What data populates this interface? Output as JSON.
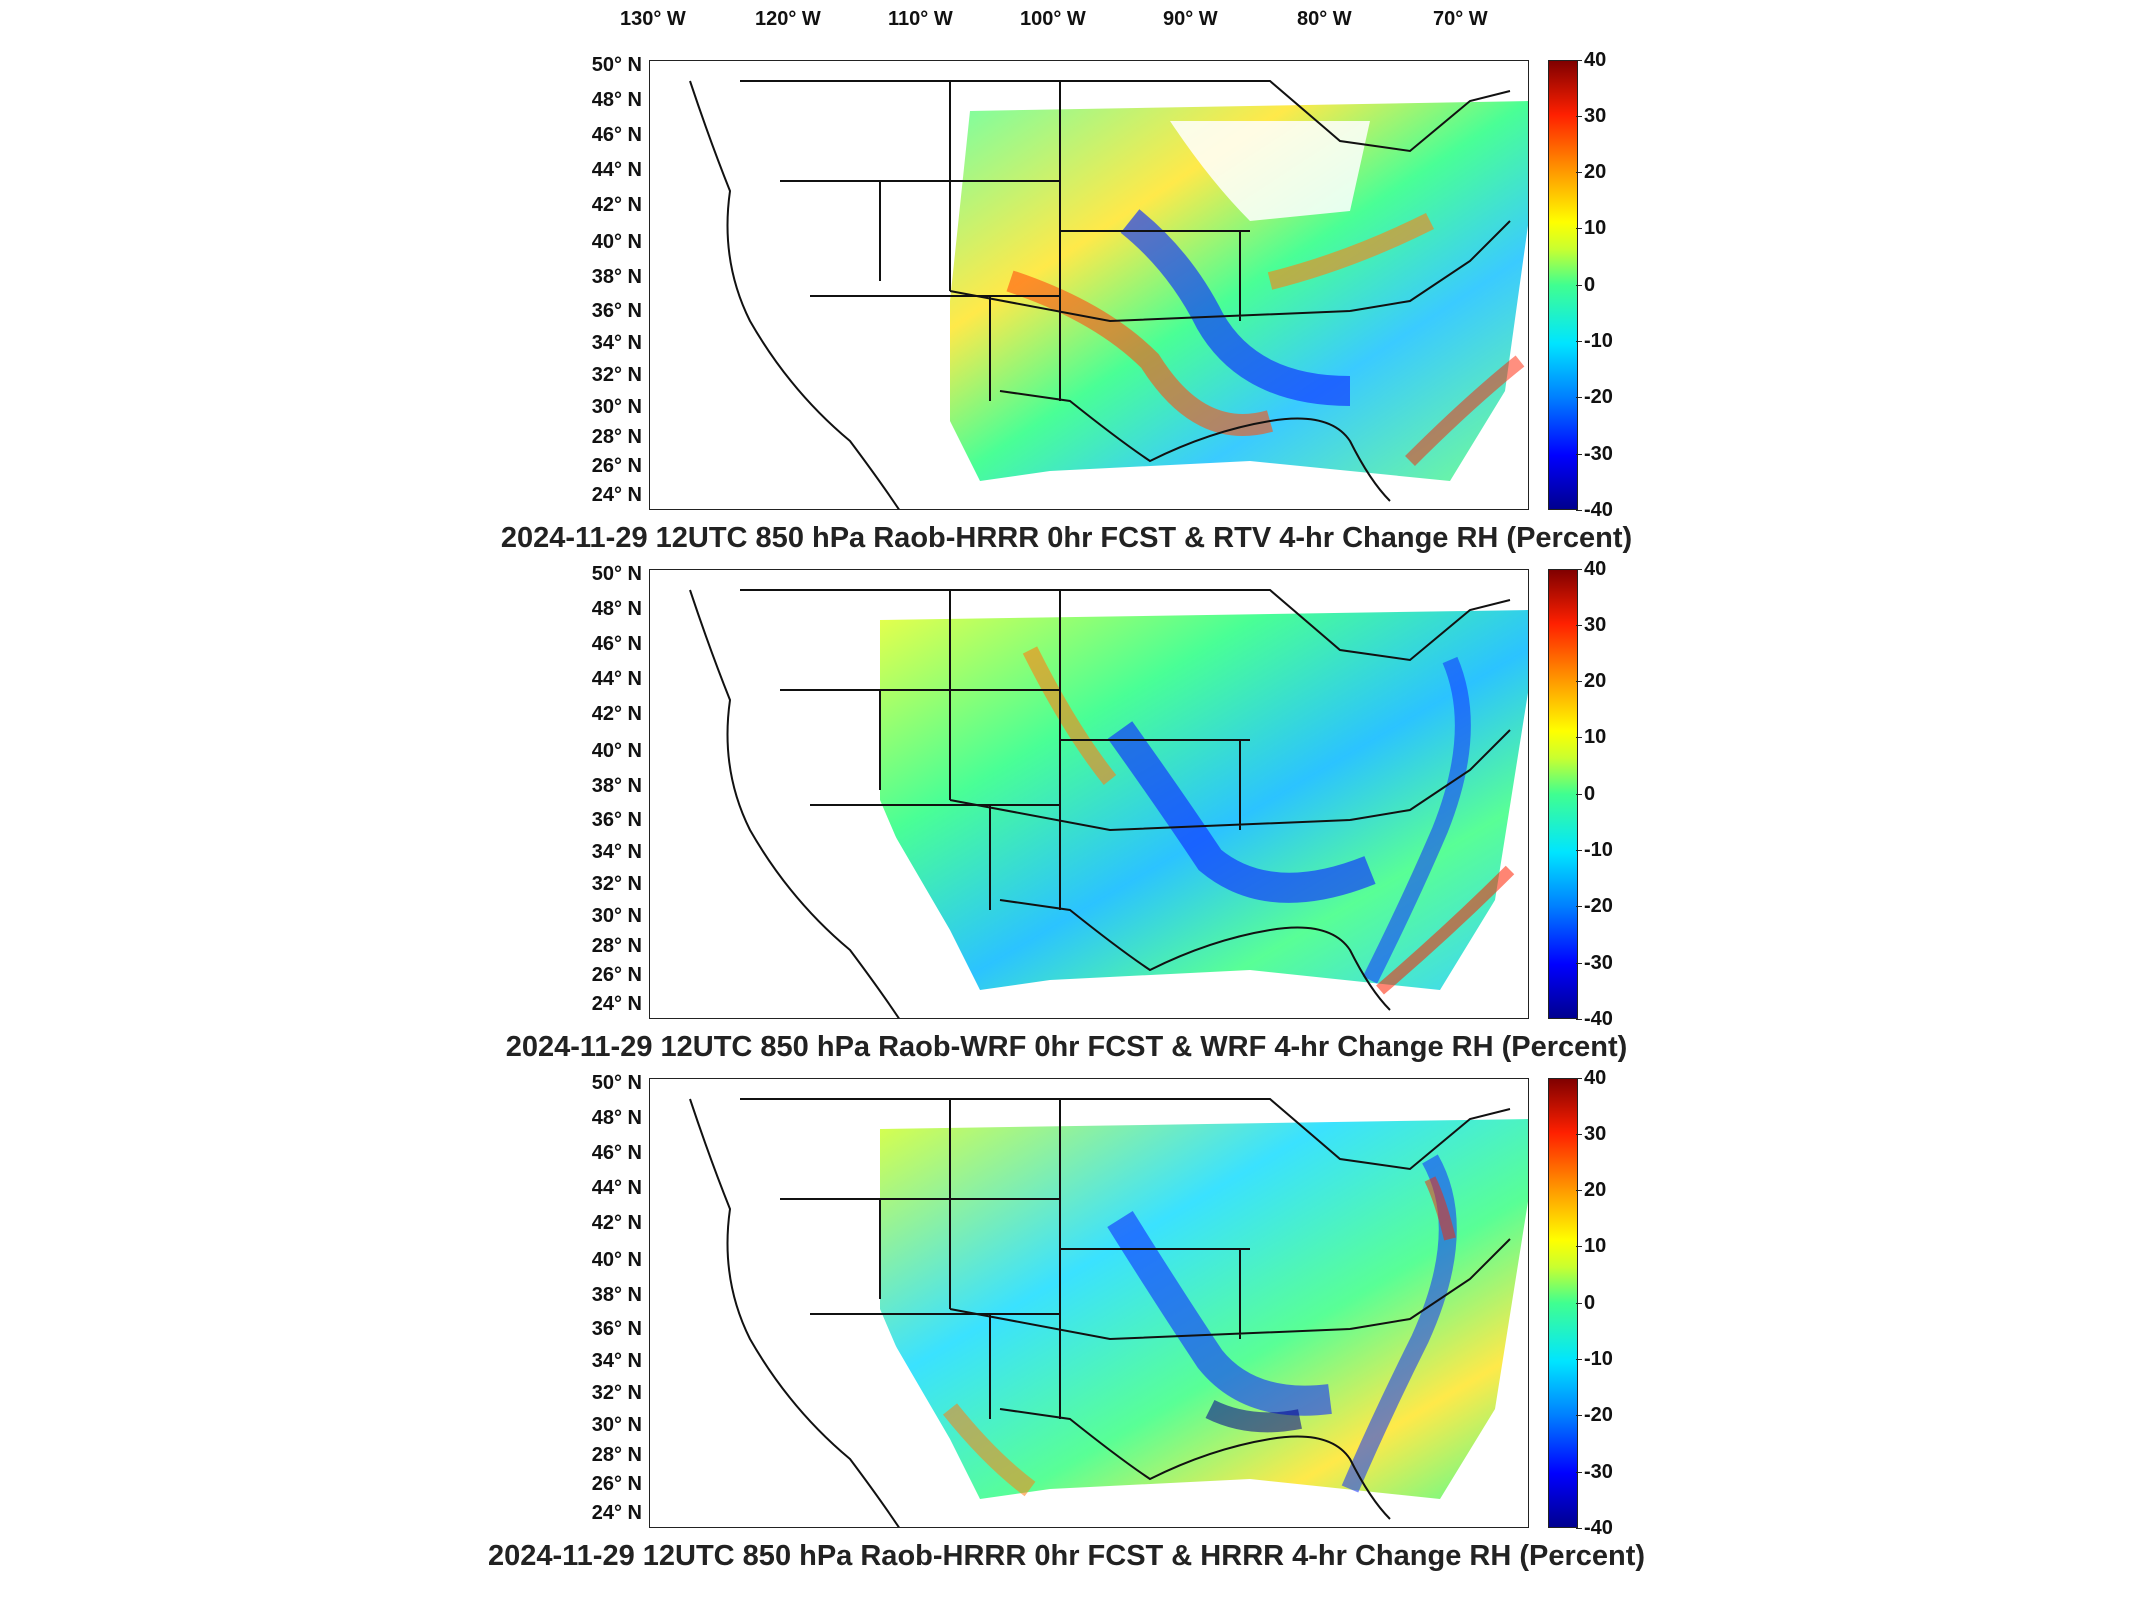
{
  "longitude_labels": [
    "130° W",
    "120° W",
    "110° W",
    "100° W",
    "90° W",
    "80° W",
    "70° W"
  ],
  "latitude_labels": [
    "50° N",
    "48° N",
    "46° N",
    "44° N",
    "42° N",
    "40° N",
    "38° N",
    "36° N",
    "34° N",
    "32° N",
    "30° N",
    "28° N",
    "26° N",
    "24° N"
  ],
  "colorbar": {
    "unit": "Percent",
    "ticks": [
      "40",
      "30",
      "20",
      "10",
      "0",
      "-10",
      "-20",
      "-30",
      "-40"
    ],
    "colors": [
      "#00008f",
      "#0000ff",
      "#0080ff",
      "#00e5ff",
      "#40ff90",
      "#ffff00",
      "#ff9c00",
      "#ff2000",
      "#800000"
    ]
  },
  "panels": [
    {
      "title": "2024-11-29 12UTC 850 hPa Raob-HRRR 0hr FCST & RTV 4-hr Change RH (Percent)"
    },
    {
      "title": "2024-11-29 12UTC 850 hPa Raob-WRF 0hr FCST & WRF 4-hr Change RH (Percent)"
    },
    {
      "title": "2024-11-29 12UTC 850 hPa Raob-HRRR 0hr FCST & HRRR 4-hr Change RH (Percent)"
    }
  ]
}
